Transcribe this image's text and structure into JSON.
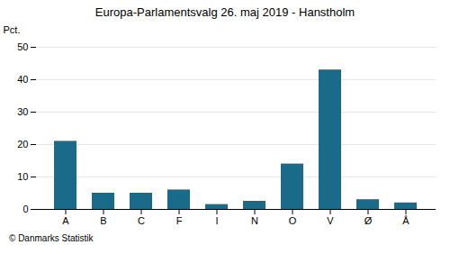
{
  "chart_data": {
    "type": "bar",
    "title": "Europa-Parlamentsvalg 26. maj 2019 - Hanstholm",
    "categories": [
      "A",
      "B",
      "C",
      "F",
      "I",
      "N",
      "O",
      "V",
      "Ø",
      "Å"
    ],
    "values": [
      21.0,
      5.0,
      5.0,
      6.0,
      1.5,
      2.5,
      14.0,
      43.0,
      3.0,
      2.0
    ],
    "color": "#1a6b8a",
    "ylabel": "Pct.",
    "ylim": [
      0,
      50
    ],
    "yticks": [
      0,
      10,
      20,
      30,
      40,
      50
    ],
    "grid": true,
    "annotations": [
      "© Danmarks Statistik"
    ]
  }
}
